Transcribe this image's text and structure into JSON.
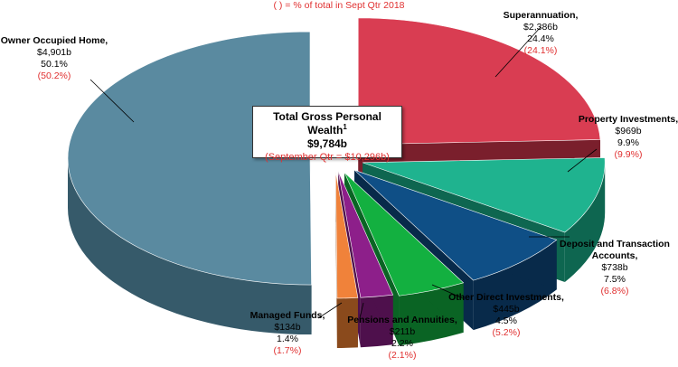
{
  "note": "(  ) = % of total in Sept Qtr 2018",
  "center": {
    "title": "Total Gross Personal Wealth",
    "superscript": "1",
    "total": "$9,784b",
    "sub": "(September Qtr = $10,296b)"
  },
  "chart_data": {
    "type": "pie",
    "slices": [
      {
        "name": "Superannuation,",
        "value_label": "$2,386b",
        "pct_label": "24.4%",
        "prev_label": "(24.1%)",
        "value": 2386,
        "top_color": "#d93d52",
        "side_color": "#7a1f2c"
      },
      {
        "name": "Property Investments,",
        "value_label": "$969b",
        "pct_label": "9.9%",
        "prev_label": "(9.9%)",
        "value": 969,
        "top_color": "#1fb38f",
        "side_color": "#0e6650"
      },
      {
        "name": "Deposit and Transaction Accounts,",
        "value_label": "$738b",
        "pct_label": "7.5%",
        "prev_label": "(6.8%)",
        "value": 738,
        "top_color": "#0f4f86",
        "side_color": "#082a4a"
      },
      {
        "name": "Other Direct Investments,",
        "value_label": "$445b",
        "pct_label": "4.5%",
        "prev_label": "(5.2%)",
        "value": 445,
        "top_color": "#13b040",
        "side_color": "#0a6424"
      },
      {
        "name": "Pensions and Annuities,",
        "value_label": "$211b",
        "pct_label": "2.2%",
        "prev_label": "(2.1%)",
        "value": 211,
        "top_color": "#8d1f8a",
        "side_color": "#4e104c"
      },
      {
        "name": "Managed Funds,",
        "value_label": "$134b",
        "pct_label": "1.4%",
        "prev_label": "(1.7%)",
        "value": 134,
        "top_color": "#f0823a",
        "side_color": "#8a4a1c"
      },
      {
        "name": "Owner Occupied Home,",
        "value_label": "$4,901b",
        "pct_label": "50.1%",
        "prev_label": "(50.2%)",
        "value": 4901,
        "top_color": "#5a8aa0",
        "side_color": "#365a6a"
      }
    ]
  }
}
